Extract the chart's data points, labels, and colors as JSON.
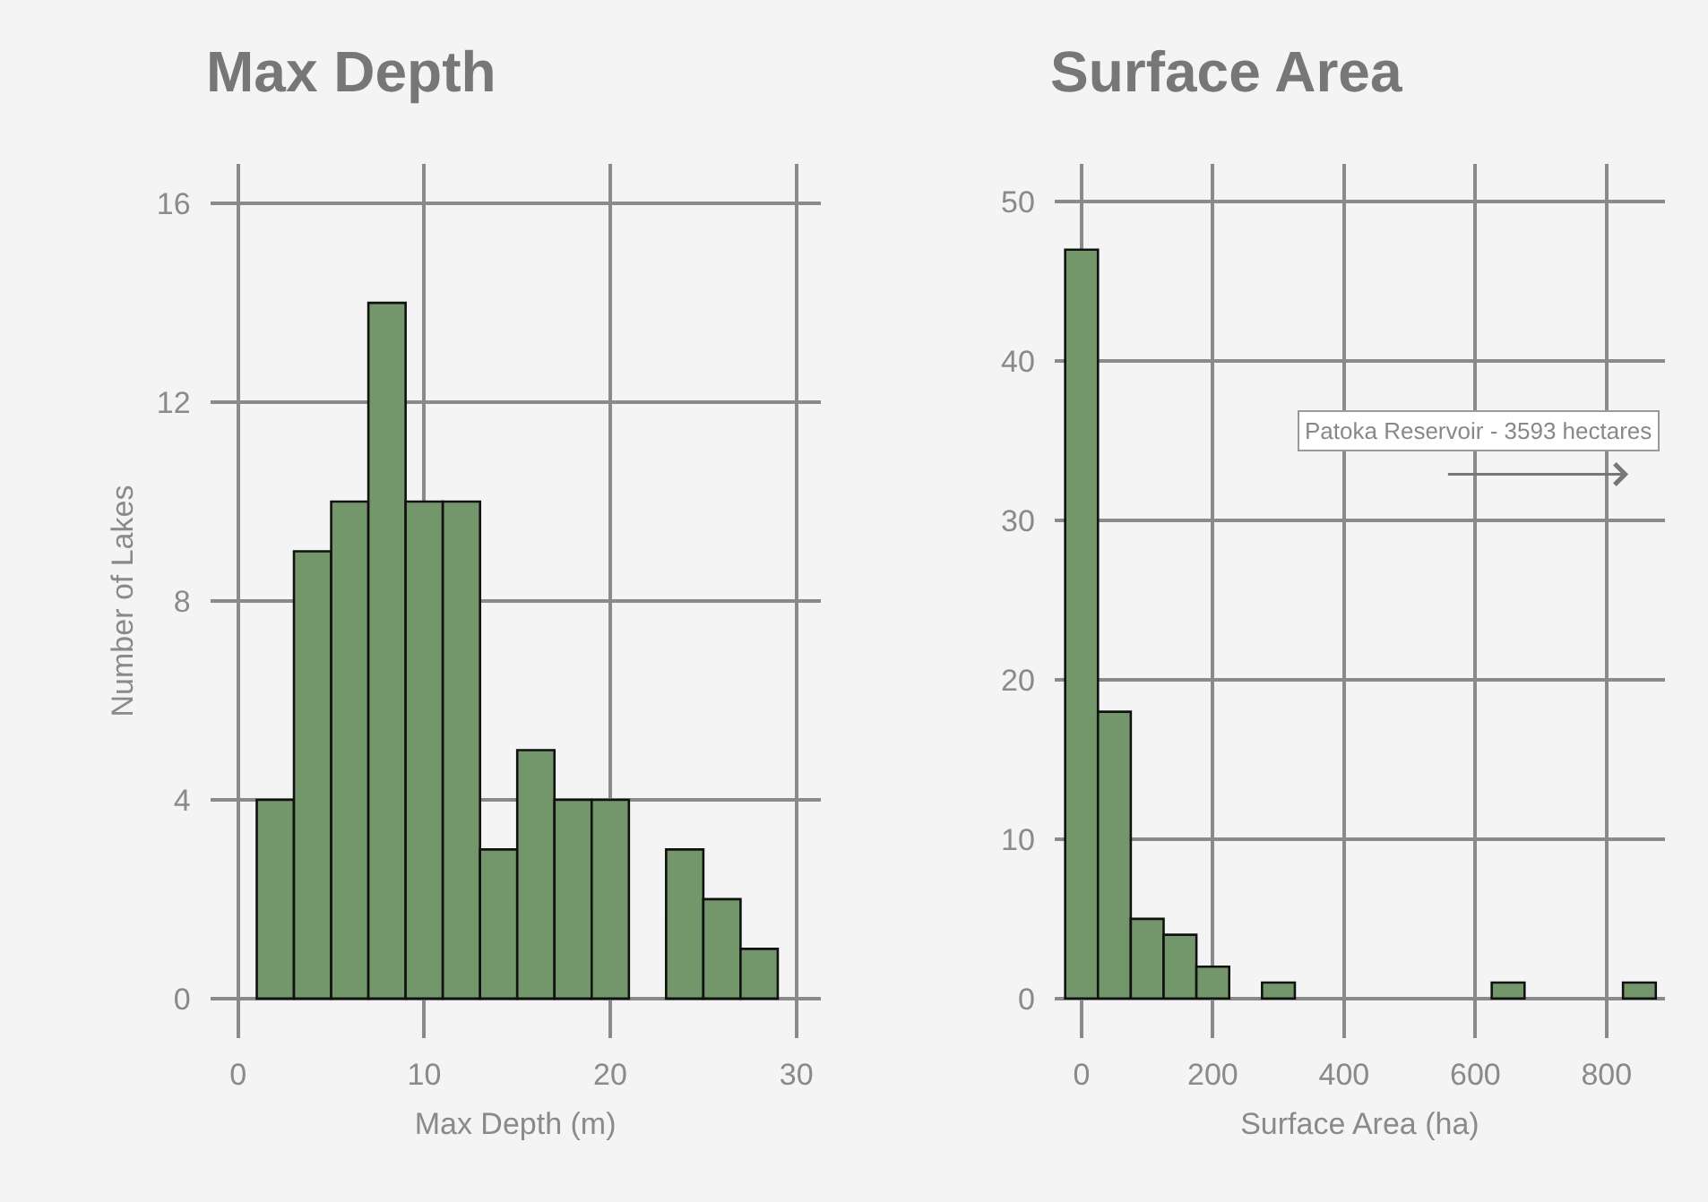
{
  "chart_data": [
    {
      "type": "histogram",
      "title": "Max Depth",
      "xlabel": "Max Depth (m)",
      "ylabel": "Number of Lakes",
      "bins": [
        1,
        3,
        5,
        7,
        9,
        11,
        13,
        15,
        17,
        19,
        21,
        23,
        25,
        27,
        29
      ],
      "values": [
        4,
        9,
        10,
        14,
        10,
        10,
        3,
        5,
        4,
        4,
        0,
        3,
        2,
        1
      ],
      "color": "#74966b",
      "xlim": [
        -1.5,
        31.3
      ],
      "ylim": [
        -0.8,
        16.8
      ],
      "xticks": [
        0,
        10,
        20,
        30
      ],
      "yticks": [
        0,
        4,
        8,
        12,
        16
      ],
      "grid": true
    },
    {
      "type": "histogram",
      "title": "Surface Area",
      "xlabel": "Surface Area (ha)",
      "bins": [
        -25,
        25,
        75,
        125,
        175,
        225,
        275,
        325,
        375,
        425,
        475,
        525,
        575,
        625,
        675,
        725,
        775,
        825,
        875
      ],
      "values": [
        47,
        18,
        5,
        4,
        2,
        0,
        1,
        0,
        0,
        0,
        0,
        0,
        0,
        1,
        0,
        0,
        0,
        1
      ],
      "color": "#74966b",
      "xlim": [
        -41,
        889
      ],
      "ylim": [
        -2.5,
        52.4
      ],
      "xticks": [
        0,
        200,
        400,
        600,
        800
      ],
      "yticks": [
        0,
        10,
        20,
        30,
        40,
        50
      ],
      "grid": true,
      "annotations": [
        "Patoka Reservoir - 3593 hectares"
      ]
    }
  ]
}
